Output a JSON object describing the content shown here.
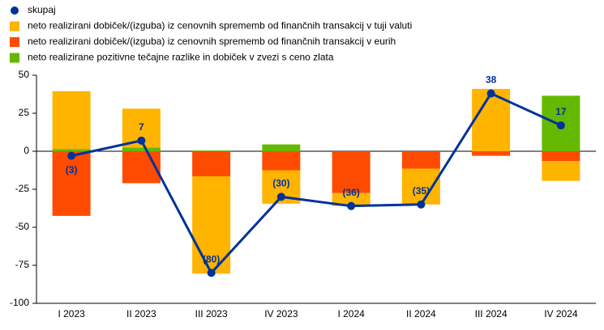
{
  "chart_data": {
    "type": "bar",
    "categories": [
      "I 2023",
      "II 2023",
      "III 2023",
      "IV 2023",
      "I 2024",
      "II 2024",
      "III 2024",
      "IV 2024"
    ],
    "series": [
      {
        "name": "skupaj",
        "type": "line",
        "color": "#003299",
        "values": [
          -3,
          7,
          -80,
          -30,
          -36,
          -35,
          38,
          17
        ],
        "value_labels": [
          "(3)",
          "7",
          "(80)",
          "(30)",
          "(36)",
          "(35)",
          "38",
          "17"
        ]
      },
      {
        "name": "neto realizirani dobiček/(izguba) iz cenovnih sprememb od finančnih transakcij v tuji valuti",
        "color": "#ffb400",
        "values": [
          38,
          25.5,
          -64,
          -22,
          -8.5,
          -23.5,
          41,
          -13
        ]
      },
      {
        "name": "neto realizirani dobiček/(izguba) iz cenovnih sprememb od finančnih transakcij v eurih",
        "color": "#ff4b00",
        "values": [
          -42.5,
          -21,
          -16.5,
          -12.5,
          -27.5,
          -11.5,
          -3,
          -6.5
        ]
      },
      {
        "name": "neto realizirane pozitivne tečajne razlike in dobiček v zvezi s ceno zlata",
        "color": "#65b800",
        "values": [
          1.5,
          2.5,
          0.5,
          4.5,
          0,
          0,
          0,
          36.5
        ]
      }
    ],
    "ylim": [
      -100,
      50
    ],
    "yticks": [
      -100,
      -75,
      -50,
      -25,
      0,
      25,
      50
    ],
    "grid": false
  }
}
